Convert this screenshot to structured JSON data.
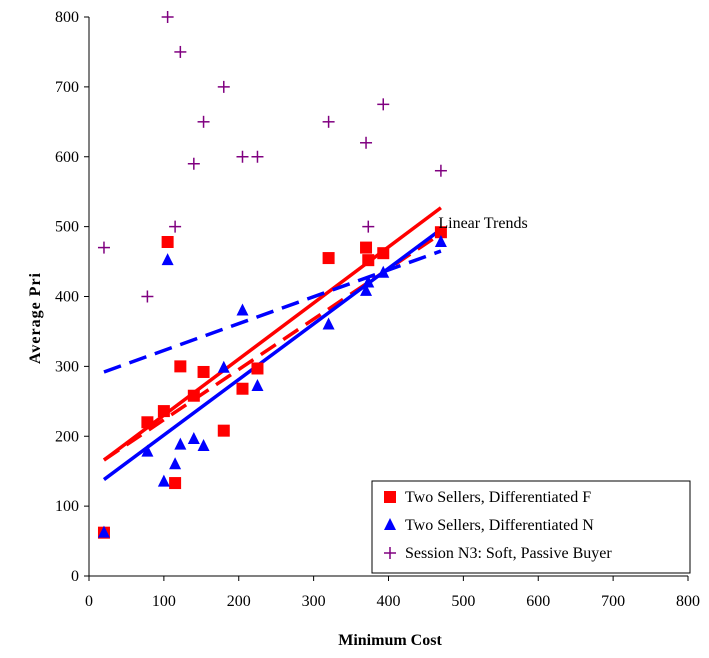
{
  "chart_data": {
    "type": "scatter",
    "xlabel": "Minimum Cost",
    "ylabel": "Average Pri",
    "xlim": [
      0,
      800
    ],
    "ylim": [
      0,
      800
    ],
    "xticks": [
      0,
      100,
      200,
      300,
      400,
      500,
      600,
      700,
      800
    ],
    "yticks": [
      0,
      100,
      200,
      300,
      400,
      500,
      600,
      700,
      800
    ],
    "grid": false,
    "legend_position": "bottom-right",
    "annotations": [
      {
        "text": "Linear Trends",
        "x": 520,
        "y": 505
      }
    ],
    "series": [
      {
        "name": "Two Sellers, Differentiated F",
        "marker": "square",
        "color": "#ff0000",
        "points": [
          [
            20,
            62
          ],
          [
            78,
            220
          ],
          [
            100,
            236
          ],
          [
            105,
            478
          ],
          [
            115,
            133
          ],
          [
            122,
            300
          ],
          [
            140,
            258
          ],
          [
            153,
            292
          ],
          [
            180,
            208
          ],
          [
            205,
            268
          ],
          [
            225,
            297
          ],
          [
            320,
            455
          ],
          [
            370,
            470
          ],
          [
            373,
            452
          ],
          [
            393,
            462
          ],
          [
            470,
            492
          ]
        ]
      },
      {
        "name": "Two Sellers, Differentiated N",
        "marker": "triangle",
        "color": "#0000ff",
        "points": [
          [
            20,
            62
          ],
          [
            78,
            178
          ],
          [
            100,
            135
          ],
          [
            105,
            452
          ],
          [
            115,
            160
          ],
          [
            122,
            188
          ],
          [
            140,
            196
          ],
          [
            153,
            186
          ],
          [
            180,
            298
          ],
          [
            205,
            380
          ],
          [
            225,
            272
          ],
          [
            320,
            360
          ],
          [
            370,
            408
          ],
          [
            373,
            420
          ],
          [
            393,
            434
          ],
          [
            470,
            478
          ]
        ]
      },
      {
        "name": "Session N3: Soft, Passive Buyer",
        "marker": "plus",
        "color": "#800080",
        "points": [
          [
            20,
            470
          ],
          [
            78,
            400
          ],
          [
            105,
            800
          ],
          [
            115,
            500
          ],
          [
            122,
            750
          ],
          [
            140,
            590
          ],
          [
            153,
            650
          ],
          [
            180,
            700
          ],
          [
            205,
            600
          ],
          [
            225,
            600
          ],
          [
            320,
            650
          ],
          [
            370,
            620
          ],
          [
            373,
            500
          ],
          [
            393,
            675
          ],
          [
            470,
            580
          ]
        ]
      }
    ],
    "trendlines": [
      {
        "series": "Two Sellers, Differentiated F",
        "style": "solid",
        "color": "#ff0000",
        "x": [
          20,
          470
        ],
        "y": [
          166,
          527
        ]
      },
      {
        "series": "Two Sellers, Differentiated F",
        "style": "dashed",
        "color": "#ff0000",
        "x": [
          20,
          470
        ],
        "y": [
          166,
          490
        ]
      },
      {
        "series": "Two Sellers, Differentiated N",
        "style": "solid",
        "color": "#0000ff",
        "x": [
          20,
          470
        ],
        "y": [
          138,
          496
        ]
      },
      {
        "series": "Two Sellers, Differentiated N",
        "style": "dashed",
        "color": "#0000ff",
        "x": [
          20,
          470
        ],
        "y": [
          292,
          465
        ]
      }
    ]
  }
}
